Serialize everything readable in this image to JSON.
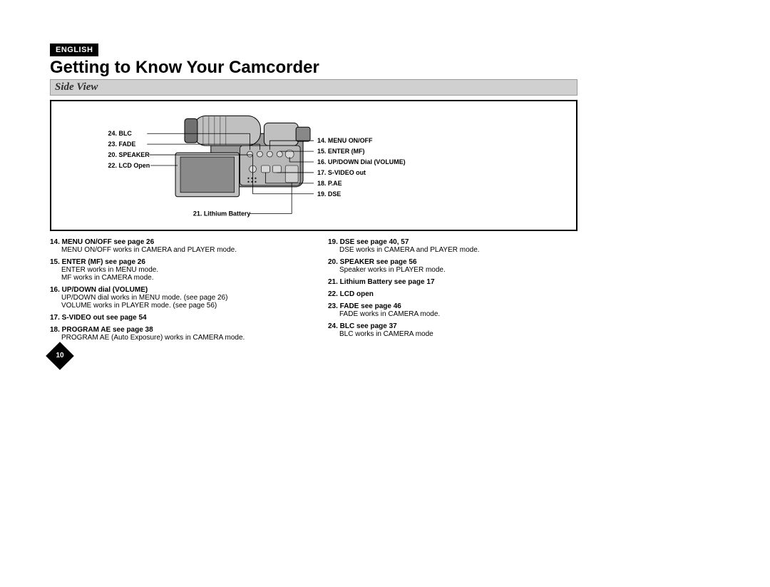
{
  "header": {
    "language": "ENGLISH",
    "title": "Getting to Know Your Camcorder",
    "subtitle": "Side View"
  },
  "page_number": "10",
  "diagram": {
    "left_labels": [
      {
        "num": "24.",
        "text": "BLC"
      },
      {
        "num": "23.",
        "text": "FADE"
      },
      {
        "num": "20.",
        "text": "SPEAKER"
      },
      {
        "num": "22.",
        "text": "LCD Open"
      }
    ],
    "bottom_label": {
      "num": "21.",
      "text": "Lithium Battery"
    },
    "right_labels": [
      {
        "num": "14.",
        "text": "MENU ON/OFF"
      },
      {
        "num": "15.",
        "text": "ENTER (MF)"
      },
      {
        "num": "16.",
        "text": "UP/DOWN Dial (VOLUME)"
      },
      {
        "num": "17.",
        "text": "S-VIDEO out"
      },
      {
        "num": "18.",
        "text": "P.AE"
      },
      {
        "num": "19.",
        "text": "DSE"
      }
    ],
    "colors": {
      "body_light": "#c8c8c8",
      "body_mid": "#9a9a9a",
      "body_dark": "#6a6a6a",
      "lcd": "#a8a8a8",
      "line": "#000000"
    }
  },
  "descriptions": {
    "left_col": [
      {
        "title": "14. MENU ON/OFF see page 26",
        "lines": [
          "MENU ON/OFF works in CAMERA and PLAYER mode."
        ]
      },
      {
        "title": "15. ENTER (MF) see page 26",
        "lines": [
          "ENTER works in MENU mode.",
          "MF works in CAMERA mode."
        ]
      },
      {
        "title": "16. UP/DOWN dial (VOLUME)",
        "lines": [
          "UP/DOWN dial works in MENU mode. (see page 26)",
          "VOLUME works in PLAYER mode. (see page 56)"
        ]
      },
      {
        "title": "17. S-VIDEO out see page 54",
        "lines": []
      },
      {
        "title": "18. PROGRAM AE see page 38",
        "lines": [
          "PROGRAM AE (Auto Exposure) works in CAMERA mode."
        ]
      }
    ],
    "right_col": [
      {
        "title": "19. DSE see page 40, 57",
        "lines": [
          "DSE works in CAMERA and PLAYER mode."
        ]
      },
      {
        "title": "20. SPEAKER see page 56",
        "lines": [
          "Speaker works in PLAYER mode."
        ]
      },
      {
        "title": "21. Lithium Battery see page 17",
        "lines": []
      },
      {
        "title": "22. LCD open",
        "lines": []
      },
      {
        "title": "23. FADE see page 46",
        "lines": [
          "FADE works in CAMERA mode."
        ]
      },
      {
        "title": "24. BLC see page 37",
        "lines": [
          "BLC works in CAMERA mode"
        ]
      }
    ]
  }
}
